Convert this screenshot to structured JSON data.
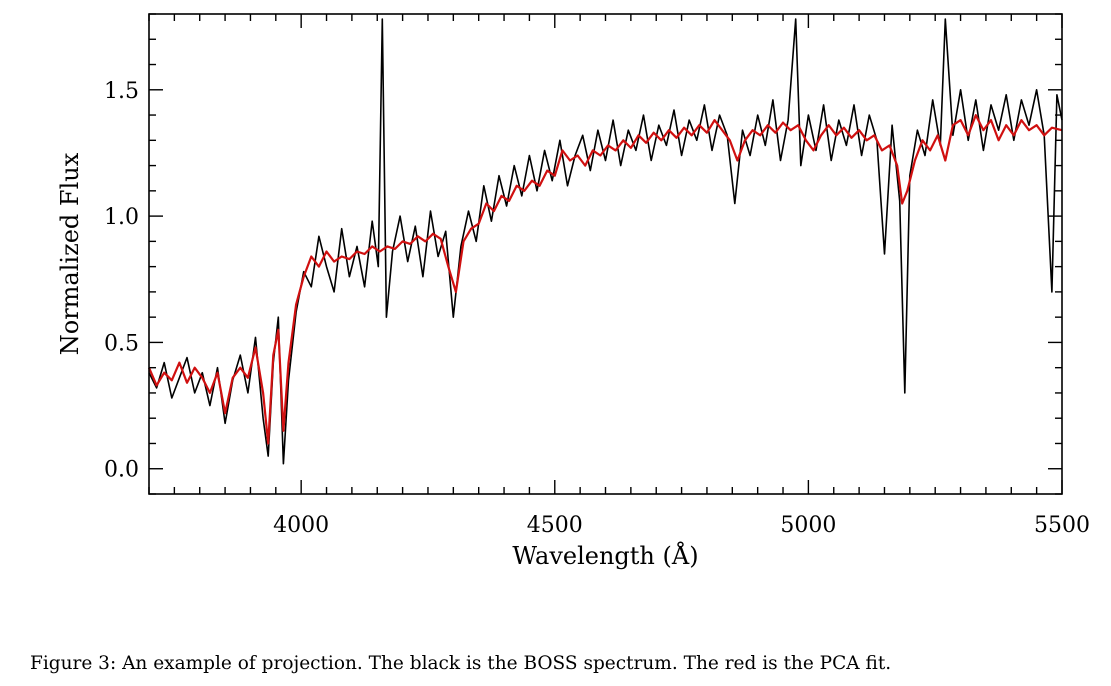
{
  "caption": "Figure 3: An example of projection. The black is the BOSS spectrum. The red is the PCA fit.",
  "chart_data": {
    "type": "line",
    "title": "",
    "xlabel": "Wavelength (Å)",
    "ylabel": "Normalized Flux",
    "xlim": [
      3700,
      5500
    ],
    "ylim": [
      -0.1,
      1.8
    ],
    "xticks": [
      4000,
      4500,
      5000,
      5500
    ],
    "yticks": [
      0.0,
      0.5,
      1.0,
      1.5
    ],
    "xtick_labels": [
      "4000",
      "4500",
      "5000",
      "5500"
    ],
    "ytick_labels": [
      "0.0",
      "0.5",
      "1.0",
      "1.5"
    ],
    "x_minor_step": 50,
    "y_minor_step": 0.1,
    "grid": false,
    "legend": "none",
    "series": [
      {
        "color": "#000000",
        "points": [
          [
            3700,
            0.38
          ],
          [
            3715,
            0.32
          ],
          [
            3730,
            0.42
          ],
          [
            3745,
            0.28
          ],
          [
            3760,
            0.36
          ],
          [
            3775,
            0.44
          ],
          [
            3790,
            0.3
          ],
          [
            3805,
            0.38
          ],
          [
            3820,
            0.25
          ],
          [
            3835,
            0.4
          ],
          [
            3850,
            0.18
          ],
          [
            3865,
            0.35
          ],
          [
            3880,
            0.45
          ],
          [
            3895,
            0.3
          ],
          [
            3910,
            0.52
          ],
          [
            3925,
            0.2
          ],
          [
            3935,
            0.05
          ],
          [
            3945,
            0.42
          ],
          [
            3955,
            0.6
          ],
          [
            3965,
            0.02
          ],
          [
            3975,
            0.35
          ],
          [
            3990,
            0.62
          ],
          [
            4005,
            0.78
          ],
          [
            4020,
            0.72
          ],
          [
            4035,
            0.92
          ],
          [
            4050,
            0.8
          ],
          [
            4065,
            0.7
          ],
          [
            4080,
            0.95
          ],
          [
            4095,
            0.76
          ],
          [
            4110,
            0.88
          ],
          [
            4125,
            0.72
          ],
          [
            4140,
            0.98
          ],
          [
            4152,
            0.8
          ],
          [
            4160,
            1.78
          ],
          [
            4168,
            0.6
          ],
          [
            4180,
            0.86
          ],
          [
            4195,
            1.0
          ],
          [
            4210,
            0.82
          ],
          [
            4225,
            0.96
          ],
          [
            4240,
            0.76
          ],
          [
            4255,
            1.02
          ],
          [
            4270,
            0.84
          ],
          [
            4285,
            0.94
          ],
          [
            4300,
            0.6
          ],
          [
            4315,
            0.88
          ],
          [
            4330,
            1.02
          ],
          [
            4345,
            0.9
          ],
          [
            4360,
            1.12
          ],
          [
            4375,
            0.98
          ],
          [
            4390,
            1.16
          ],
          [
            4405,
            1.04
          ],
          [
            4420,
            1.2
          ],
          [
            4435,
            1.08
          ],
          [
            4450,
            1.24
          ],
          [
            4465,
            1.1
          ],
          [
            4480,
            1.26
          ],
          [
            4495,
            1.14
          ],
          [
            4510,
            1.3
          ],
          [
            4525,
            1.12
          ],
          [
            4540,
            1.24
          ],
          [
            4555,
            1.32
          ],
          [
            4570,
            1.18
          ],
          [
            4585,
            1.34
          ],
          [
            4600,
            1.22
          ],
          [
            4615,
            1.38
          ],
          [
            4630,
            1.2
          ],
          [
            4645,
            1.34
          ],
          [
            4660,
            1.26
          ],
          [
            4675,
            1.4
          ],
          [
            4690,
            1.22
          ],
          [
            4705,
            1.36
          ],
          [
            4720,
            1.28
          ],
          [
            4735,
            1.42
          ],
          [
            4750,
            1.24
          ],
          [
            4765,
            1.38
          ],
          [
            4780,
            1.3
          ],
          [
            4795,
            1.44
          ],
          [
            4810,
            1.26
          ],
          [
            4825,
            1.4
          ],
          [
            4840,
            1.32
          ],
          [
            4855,
            1.05
          ],
          [
            4870,
            1.34
          ],
          [
            4885,
            1.24
          ],
          [
            4900,
            1.4
          ],
          [
            4915,
            1.28
          ],
          [
            4930,
            1.46
          ],
          [
            4945,
            1.22
          ],
          [
            4960,
            1.38
          ],
          [
            4975,
            1.78
          ],
          [
            4985,
            1.2
          ],
          [
            5000,
            1.4
          ],
          [
            5015,
            1.26
          ],
          [
            5030,
            1.44
          ],
          [
            5045,
            1.22
          ],
          [
            5060,
            1.38
          ],
          [
            5075,
            1.28
          ],
          [
            5090,
            1.44
          ],
          [
            5105,
            1.24
          ],
          [
            5120,
            1.4
          ],
          [
            5135,
            1.3
          ],
          [
            5150,
            0.85
          ],
          [
            5165,
            1.36
          ],
          [
            5180,
            1.06
          ],
          [
            5190,
            0.3
          ],
          [
            5200,
            1.16
          ],
          [
            5215,
            1.34
          ],
          [
            5230,
            1.24
          ],
          [
            5245,
            1.46
          ],
          [
            5260,
            1.28
          ],
          [
            5270,
            1.78
          ],
          [
            5285,
            1.32
          ],
          [
            5300,
            1.5
          ],
          [
            5315,
            1.3
          ],
          [
            5330,
            1.46
          ],
          [
            5345,
            1.26
          ],
          [
            5360,
            1.44
          ],
          [
            5375,
            1.34
          ],
          [
            5390,
            1.48
          ],
          [
            5405,
            1.3
          ],
          [
            5420,
            1.46
          ],
          [
            5435,
            1.36
          ],
          [
            5450,
            1.5
          ],
          [
            5465,
            1.32
          ],
          [
            5480,
            0.7
          ],
          [
            5490,
            1.48
          ],
          [
            5500,
            1.38
          ]
        ]
      },
      {
        "color": "#d01010",
        "points": [
          [
            3700,
            0.4
          ],
          [
            3715,
            0.33
          ],
          [
            3730,
            0.38
          ],
          [
            3745,
            0.35
          ],
          [
            3760,
            0.42
          ],
          [
            3775,
            0.34
          ],
          [
            3790,
            0.4
          ],
          [
            3805,
            0.36
          ],
          [
            3820,
            0.3
          ],
          [
            3835,
            0.38
          ],
          [
            3850,
            0.22
          ],
          [
            3865,
            0.36
          ],
          [
            3880,
            0.4
          ],
          [
            3895,
            0.36
          ],
          [
            3910,
            0.48
          ],
          [
            3925,
            0.3
          ],
          [
            3935,
            0.1
          ],
          [
            3945,
            0.45
          ],
          [
            3955,
            0.55
          ],
          [
            3965,
            0.15
          ],
          [
            3975,
            0.42
          ],
          [
            3990,
            0.65
          ],
          [
            4005,
            0.76
          ],
          [
            4020,
            0.84
          ],
          [
            4035,
            0.8
          ],
          [
            4050,
            0.86
          ],
          [
            4065,
            0.82
          ],
          [
            4080,
            0.84
          ],
          [
            4095,
            0.83
          ],
          [
            4110,
            0.86
          ],
          [
            4125,
            0.85
          ],
          [
            4140,
            0.88
          ],
          [
            4155,
            0.86
          ],
          [
            4170,
            0.88
          ],
          [
            4185,
            0.87
          ],
          [
            4200,
            0.9
          ],
          [
            4215,
            0.89
          ],
          [
            4230,
            0.92
          ],
          [
            4245,
            0.9
          ],
          [
            4260,
            0.93
          ],
          [
            4275,
            0.91
          ],
          [
            4290,
            0.8
          ],
          [
            4305,
            0.7
          ],
          [
            4320,
            0.9
          ],
          [
            4335,
            0.95
          ],
          [
            4350,
            0.97
          ],
          [
            4365,
            1.05
          ],
          [
            4380,
            1.02
          ],
          [
            4395,
            1.08
          ],
          [
            4410,
            1.06
          ],
          [
            4425,
            1.12
          ],
          [
            4440,
            1.1
          ],
          [
            4455,
            1.14
          ],
          [
            4470,
            1.12
          ],
          [
            4485,
            1.18
          ],
          [
            4500,
            1.16
          ],
          [
            4515,
            1.26
          ],
          [
            4530,
            1.22
          ],
          [
            4545,
            1.24
          ],
          [
            4560,
            1.2
          ],
          [
            4575,
            1.26
          ],
          [
            4590,
            1.24
          ],
          [
            4605,
            1.28
          ],
          [
            4620,
            1.26
          ],
          [
            4635,
            1.3
          ],
          [
            4650,
            1.27
          ],
          [
            4665,
            1.32
          ],
          [
            4680,
            1.29
          ],
          [
            4695,
            1.33
          ],
          [
            4710,
            1.3
          ],
          [
            4725,
            1.34
          ],
          [
            4740,
            1.31
          ],
          [
            4755,
            1.35
          ],
          [
            4770,
            1.32
          ],
          [
            4785,
            1.36
          ],
          [
            4800,
            1.33
          ],
          [
            4815,
            1.38
          ],
          [
            4830,
            1.34
          ],
          [
            4845,
            1.3
          ],
          [
            4860,
            1.22
          ],
          [
            4875,
            1.3
          ],
          [
            4890,
            1.34
          ],
          [
            4905,
            1.32
          ],
          [
            4920,
            1.36
          ],
          [
            4935,
            1.33
          ],
          [
            4950,
            1.37
          ],
          [
            4965,
            1.34
          ],
          [
            4980,
            1.36
          ],
          [
            4995,
            1.3
          ],
          [
            5010,
            1.26
          ],
          [
            5025,
            1.32
          ],
          [
            5040,
            1.36
          ],
          [
            5055,
            1.32
          ],
          [
            5070,
            1.35
          ],
          [
            5085,
            1.31
          ],
          [
            5100,
            1.34
          ],
          [
            5115,
            1.3
          ],
          [
            5130,
            1.32
          ],
          [
            5145,
            1.26
          ],
          [
            5160,
            1.28
          ],
          [
            5175,
            1.2
          ],
          [
            5185,
            1.05
          ],
          [
            5195,
            1.1
          ],
          [
            5210,
            1.22
          ],
          [
            5225,
            1.3
          ],
          [
            5240,
            1.26
          ],
          [
            5255,
            1.32
          ],
          [
            5270,
            1.22
          ],
          [
            5285,
            1.36
          ],
          [
            5300,
            1.38
          ],
          [
            5315,
            1.32
          ],
          [
            5330,
            1.4
          ],
          [
            5345,
            1.34
          ],
          [
            5360,
            1.38
          ],
          [
            5375,
            1.3
          ],
          [
            5390,
            1.36
          ],
          [
            5405,
            1.32
          ],
          [
            5420,
            1.38
          ],
          [
            5435,
            1.34
          ],
          [
            5450,
            1.36
          ],
          [
            5465,
            1.32
          ],
          [
            5480,
            1.35
          ],
          [
            5500,
            1.34
          ]
        ]
      }
    ]
  }
}
